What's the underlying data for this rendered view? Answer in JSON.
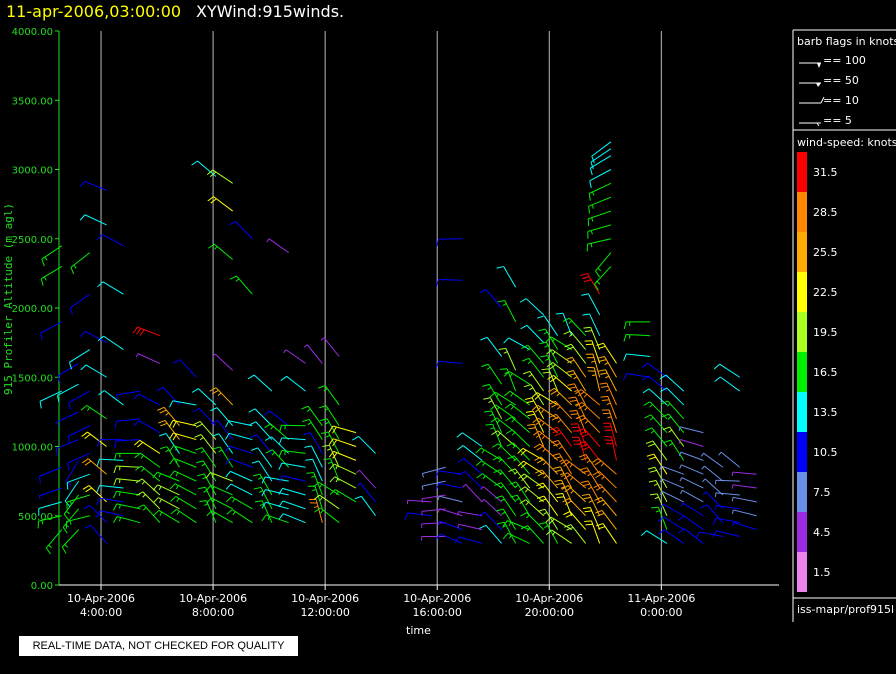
{
  "header": {
    "date": "11-apr-2006,03:00:00",
    "title": "XYWind:915winds."
  },
  "notice": "REAL-TIME DATA, NOT CHECKED FOR QUALITY",
  "colors": {
    "background": "#000000",
    "axis": "#22dd22",
    "grid": "#bbbbbb",
    "date_title": "#ffff00"
  },
  "barb_legend": {
    "title": "barb flags in knots",
    "items": [
      "== 100",
      "== 50",
      "== 10",
      "== 5"
    ]
  },
  "speed_scale": {
    "title": "wind-speed: knots",
    "bins": [
      {
        "label": "31.5",
        "color": "#ff0000"
      },
      {
        "label": "28.5",
        "color": "#ff8800"
      },
      {
        "label": "25.5",
        "color": "#ffaa00"
      },
      {
        "label": "22.5",
        "color": "#ffff00"
      },
      {
        "label": "19.5",
        "color": "#aaff22"
      },
      {
        "label": "16.5",
        "color": "#00ee00"
      },
      {
        "label": "13.5",
        "color": "#00ffff"
      },
      {
        "label": "10.5",
        "color": "#0000ff"
      },
      {
        "label": "7.5",
        "color": "#6a8fe8"
      },
      {
        "label": "4.5",
        "color": "#9a2be2"
      },
      {
        "label": "1.5",
        "color": "#ee82ee"
      }
    ]
  },
  "source_label": "iss-mapr/prof915l",
  "chart_data": {
    "type": "scatter",
    "title": "XYWind:915winds.",
    "subtitle": "11-apr-2006,03:00:00",
    "xlabel": "time",
    "ylabel": "915 Profiler Altitude (m agl)",
    "xlim_hours": [
      2.5,
      28.2
    ],
    "ylim": [
      0,
      4000
    ],
    "yticks": [
      "0.00",
      "500.00",
      "1000.00",
      "1500.00",
      "2000.00",
      "2500.00",
      "3000.00",
      "3500.00",
      "4000.00"
    ],
    "xticks": [
      {
        "t": 4,
        "date": "10-Apr-2006",
        "time": "4:00:00"
      },
      {
        "t": 8,
        "date": "10-Apr-2006",
        "time": "8:00:00"
      },
      {
        "t": 12,
        "date": "10-Apr-2006",
        "time": "12:00:00"
      },
      {
        "t": 16,
        "date": "10-Apr-2006",
        "time": "16:00:00"
      },
      {
        "t": 20,
        "date": "10-Apr-2006",
        "time": "20:00:00"
      },
      {
        "t": 24,
        "date": "11-Apr-2006",
        "time": "0:00:00"
      }
    ],
    "grid": true,
    "series": [
      {
        "t": 2.6,
        "alts": [
          400,
          500,
          600,
          700,
          850,
          1400,
          1900,
          2300,
          2450
        ],
        "speeds": [
          17,
          15,
          12,
          9,
          11,
          12,
          11,
          15,
          17
        ],
        "dir": 240
      },
      {
        "t": 3.2,
        "alts": [
          400,
          550,
          650,
          750,
          900,
          1050,
          1250,
          1450,
          1600
        ],
        "speeds": [
          17,
          16,
          15,
          13,
          11,
          10,
          9,
          12,
          10
        ],
        "dir": 230
      },
      {
        "t": 3.6,
        "alts": [
          500,
          650,
          800,
          950,
          1150,
          1400,
          1700,
          2100,
          2400
        ],
        "speeds": [
          16,
          15,
          12,
          11,
          10,
          11,
          12,
          10,
          17
        ],
        "dir": 250
      },
      {
        "t": 4.2,
        "alts": [
          300,
          450,
          600,
          800,
          1000,
          1200,
          1500,
          1750,
          2600,
          2850
        ],
        "speeds": [
          11,
          10,
          22,
          24,
          21,
          15,
          13,
          10,
          13,
          10
        ],
        "dir": 300
      },
      {
        "t": 4.8,
        "alts": [
          500,
          600,
          700,
          900,
          1050,
          1300,
          1700,
          2100,
          2450
        ],
        "speeds": [
          10,
          10,
          12,
          13,
          11,
          13,
          12,
          14,
          10
        ],
        "dir": 290
      },
      {
        "t": 5.4,
        "alts": [
          450,
          550,
          650,
          750,
          850,
          950,
          1050,
          1200,
          1400
        ],
        "speeds": [
          17,
          16,
          17,
          18,
          19,
          16,
          10,
          11,
          9
        ],
        "dir": 280
      },
      {
        "t": 6.1,
        "alts": [
          450,
          550,
          650,
          750,
          850,
          950,
          1100,
          1300,
          1600,
          1800
        ],
        "speeds": [
          17,
          18,
          19,
          16,
          17,
          21,
          11,
          10,
          5,
          31
        ],
        "dir": 300
      },
      {
        "t": 6.8,
        "alts": [
          450,
          550,
          650,
          750,
          850,
          950,
          1050,
          1150,
          1300
        ],
        "speeds": [
          17,
          18,
          19,
          17,
          15,
          12,
          24,
          25,
          10
        ],
        "dir": 310
      },
      {
        "t": 7.4,
        "alts": [
          450,
          550,
          650,
          750,
          850,
          950,
          1050,
          1150,
          1300,
          1500
        ],
        "speeds": [
          16,
          17,
          15,
          16,
          17,
          16,
          22,
          23,
          12,
          11
        ],
        "dir": 300
      },
      {
        "t": 8.1,
        "alts": [
          450,
          550,
          650,
          750,
          850,
          950,
          1050,
          1150,
          1300,
          2950
        ],
        "speeds": [
          17,
          16,
          15,
          16,
          17,
          19,
          20,
          11,
          12,
          14
        ],
        "dir": 320
      },
      {
        "t": 8.7,
        "alts": [
          450,
          550,
          650,
          750,
          850,
          950,
          1050,
          1150,
          1300,
          1550,
          2350,
          2700,
          2900
        ],
        "speeds": [
          16,
          17,
          16,
          18,
          15,
          12,
          11,
          14,
          26,
          5,
          16,
          23,
          20
        ],
        "dir": 310
      },
      {
        "t": 9.4,
        "alts": [
          450,
          550,
          650,
          750,
          850,
          950,
          1050,
          1150,
          2100,
          2500
        ],
        "speeds": [
          16,
          15,
          14,
          13,
          11,
          10,
          13,
          12,
          17,
          11
        ],
        "dir": 300
      },
      {
        "t": 10.1,
        "alts": [
          450,
          550,
          650,
          750,
          850,
          950,
          1050,
          1150,
          1400
        ],
        "speeds": [
          17,
          16,
          15,
          13,
          12,
          11,
          14,
          13,
          14
        ],
        "dir": 320
      },
      {
        "t": 10.7,
        "alts": [
          450,
          550,
          650,
          750,
          850,
          950,
          1050,
          1150,
          2400
        ],
        "speeds": [
          15,
          14,
          13,
          12,
          16,
          13,
          17,
          11,
          5
        ],
        "dir": 300
      },
      {
        "t": 11.3,
        "alts": [
          450,
          550,
          650,
          750,
          850,
          950,
          1050,
          1150,
          1400,
          1600
        ],
        "speeds": [
          14,
          13,
          12,
          11,
          13,
          15,
          14,
          17,
          12,
          5
        ],
        "dir": 290
      },
      {
        "t": 11.9,
        "alts": [
          450,
          550,
          650,
          750,
          850,
          950,
          1050,
          1150,
          1600
        ],
        "speeds": [
          29,
          16,
          15,
          14,
          12,
          11,
          17,
          16,
          5
        ],
        "dir": 330
      },
      {
        "t": 12.5,
        "alts": [
          450,
          550,
          650,
          750,
          850,
          950,
          1050,
          1150,
          1300,
          1650
        ],
        "speeds": [
          17,
          18,
          16,
          17,
          18,
          16,
          17,
          16,
          17,
          5
        ],
        "dir": 320
      },
      {
        "t": 13.1,
        "alts": [
          600,
          700,
          800,
          900,
          1000,
          1100
        ],
        "speeds": [
          16,
          19,
          19,
          22,
          23,
          22
        ],
        "dir": 300
      },
      {
        "t": 13.8,
        "alts": [
          500,
          600,
          700,
          950
        ],
        "speeds": [
          12,
          9,
          5,
          14
        ],
        "dir": 310
      },
      {
        "t": 15.8,
        "alts": [
          500,
          600
        ],
        "speeds": [
          11,
          5
        ],
        "dir": 290
      },
      {
        "t": 16.3,
        "alts": [
          350,
          450,
          550,
          650,
          750,
          850
        ],
        "speeds": [
          5,
          5,
          5,
          5,
          7,
          8
        ],
        "dir": 270
      },
      {
        "t": 16.9,
        "alts": [
          300,
          400,
          500,
          600,
          700,
          800,
          1600,
          2200,
          2500
        ],
        "speeds": [
          11,
          9,
          5,
          7,
          11,
          10,
          11,
          10,
          11
        ],
        "dir": 280
      },
      {
        "t": 17.6,
        "alts": [
          300,
          400,
          500,
          600,
          700,
          800,
          900,
          1000
        ],
        "speeds": [
          10,
          5,
          5,
          5,
          11,
          11,
          13,
          14
        ],
        "dir": 300
      },
      {
        "t": 18.3,
        "alts": [
          300,
          400,
          500,
          600,
          700,
          800,
          900,
          1000,
          1100,
          1200,
          1300,
          1450,
          1650,
          2000
        ],
        "speeds": [
          12,
          11,
          5,
          5,
          17,
          16,
          15,
          17,
          16,
          18,
          17,
          16,
          12,
          11
        ],
        "dir": 320
      },
      {
        "t": 18.8,
        "alts": [
          300,
          400,
          500,
          600,
          700,
          800,
          900,
          1000,
          1100,
          1200,
          1300,
          1400,
          1550,
          1900,
          2150
        ],
        "speeds": [
          17,
          16,
          15,
          16,
          17,
          16,
          17,
          18,
          17,
          16,
          17,
          16,
          18,
          16,
          13
        ],
        "dir": 320
      },
      {
        "t": 19.3,
        "alts": [
          300,
          400,
          500,
          600,
          700,
          800,
          900,
          1000,
          1100,
          1200,
          1300,
          1450,
          1700
        ],
        "speeds": [
          16,
          17,
          16,
          17,
          18,
          16,
          17,
          16,
          17,
          16,
          17,
          16,
          12
        ],
        "dir": 310
      },
      {
        "t": 19.8,
        "alts": [
          300,
          400,
          500,
          600,
          700,
          800,
          900,
          1000,
          1100,
          1200,
          1300,
          1400,
          1500,
          1600,
          1750,
          1950
        ],
        "speeds": [
          16,
          17,
          18,
          19,
          20,
          22,
          23,
          24,
          22,
          21,
          19,
          18,
          16,
          17,
          12,
          14
        ],
        "dir": 320
      },
      {
        "t": 20.3,
        "alts": [
          300,
          400,
          500,
          600,
          700,
          800,
          900,
          1000,
          1100,
          1200,
          1300,
          1400,
          1500,
          1600,
          1700,
          1800
        ],
        "speeds": [
          16,
          18,
          22,
          23,
          25,
          26,
          28,
          29,
          27,
          25,
          22,
          20,
          17,
          16,
          15,
          12
        ],
        "dir": 320
      },
      {
        "t": 20.8,
        "alts": [
          300,
          400,
          500,
          600,
          700,
          800,
          900,
          1000,
          1100,
          1200,
          1300,
          1400,
          1500,
          1600,
          1700,
          1800
        ],
        "speeds": [
          19,
          20,
          22,
          25,
          26,
          28,
          29,
          30,
          28,
          27,
          25,
          23,
          20,
          18,
          16,
          14
        ],
        "dir": 320
      },
      {
        "t": 21.3,
        "alts": [
          300,
          400,
          500,
          600,
          700,
          800,
          900,
          1000,
          1100,
          1200,
          1300,
          1400,
          1500,
          1600,
          1700,
          1800
        ],
        "speeds": [
          20,
          22,
          24,
          26,
          28,
          29,
          30,
          32,
          29,
          28,
          27,
          26,
          24,
          20,
          19,
          17
        ],
        "dir": 325
      },
      {
        "t": 21.8,
        "alts": [
          300,
          400,
          500,
          600,
          700,
          800,
          900,
          1000,
          1100,
          1200,
          1300,
          1400,
          1500,
          1600,
          1700,
          1800,
          1950,
          2100
        ],
        "speeds": [
          22,
          23,
          25,
          27,
          28,
          29,
          31,
          30,
          29,
          28,
          27,
          26,
          25,
          23,
          20,
          14,
          12,
          31
        ],
        "dir": 330
      },
      {
        "t": 22.2,
        "alts": [
          2300,
          2400,
          2500,
          2600,
          2700,
          2800,
          2900,
          3000,
          3100,
          3150,
          3200
        ],
        "speeds": [
          16,
          16,
          15,
          16,
          16,
          15,
          15,
          14,
          14,
          13,
          14
        ],
        "dir": 240
      },
      {
        "t": 22.4,
        "alts": [
          300,
          400,
          500,
          600,
          700,
          800,
          900,
          1000,
          1100,
          1200,
          1300,
          1400,
          1500,
          1600
        ],
        "speeds": [
          23,
          24,
          25,
          27,
          28,
          29,
          30,
          31,
          29,
          28,
          27,
          26,
          25,
          23
        ],
        "dir": 330
      },
      {
        "t": 23.6,
        "alts": [
          1500,
          1650,
          1800,
          1900
        ],
        "speeds": [
          11,
          12,
          17,
          16
        ],
        "dir": 270
      },
      {
        "t": 24.2,
        "alts": [
          300,
          400,
          500,
          600,
          700,
          800,
          900,
          1000,
          1100,
          1200,
          1300,
          1400,
          1500
        ],
        "speeds": [
          14,
          16,
          18,
          19,
          20,
          21,
          20,
          17,
          16,
          15,
          13,
          11,
          10
        ],
        "dir": 320
      },
      {
        "t": 24.8,
        "alts": [
          300,
          400,
          500,
          600,
          700,
          800,
          900,
          1000,
          1100,
          1200,
          1300,
          1400
        ],
        "speeds": [
          11,
          10,
          9,
          8,
          7,
          6,
          16,
          18,
          17,
          15,
          14,
          12
        ],
        "dir": 310
      },
      {
        "t": 25.5,
        "alts": [
          300,
          400,
          500,
          600,
          700,
          800,
          900,
          1000,
          1100
        ],
        "speeds": [
          11,
          10,
          9,
          8,
          7,
          6,
          6,
          5,
          6
        ],
        "dir": 300
      },
      {
        "t": 26.2,
        "alts": [
          350,
          450,
          550,
          650,
          750,
          850
        ],
        "speeds": [
          11,
          10,
          9,
          8,
          7,
          6
        ],
        "dir": 300
      },
      {
        "t": 26.8,
        "alts": [
          350,
          450,
          550,
          650,
          750,
          850,
          1400,
          1500
        ],
        "speeds": [
          11,
          10,
          9,
          8,
          7,
          6,
          13,
          14
        ],
        "dir": 290
      },
      {
        "t": 27.4,
        "alts": [
          400,
          500,
          600,
          700,
          800
        ],
        "speeds": [
          9,
          7,
          6,
          5,
          5
        ],
        "dir": 280
      }
    ]
  }
}
